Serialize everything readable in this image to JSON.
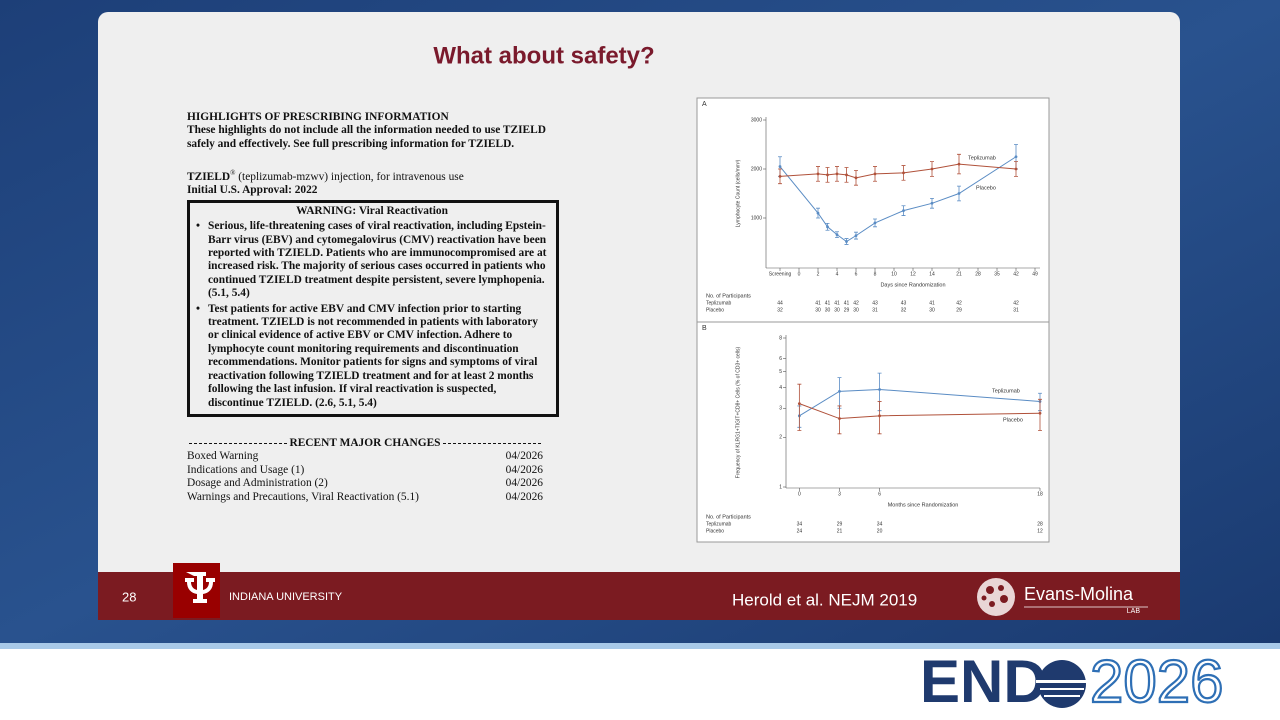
{
  "slide": {
    "title": "What about safety?",
    "number": "28",
    "university": "INDIANA UNIVERSITY",
    "citation": "Herold et al. NEJM 2019",
    "lab_name": "Evans-Molina",
    "lab_sub": "LAB"
  },
  "conference": {
    "brand": "END",
    "year": "2026"
  },
  "label": {
    "heading": "HIGHLIGHTS OF PRESCRIBING INFORMATION",
    "intro": "These highlights do not include all the information needed to use TZIELD safely and effectively.  See full prescribing information for TZIELD.",
    "drug_name": "TZIELD",
    "drug_mark": "®",
    "drug_rest": " (teplizumab-mzwv) injection, for intravenous use",
    "approval": "Initial U.S. Approval: 2022",
    "warning": {
      "title": "WARNING: Viral Reactivation",
      "bullets": [
        "Serious, life-threatening cases of viral reactivation, including Epstein-Barr virus (EBV) and cytomegalovirus (CMV) reactivation have been reported with TZIELD.  Patients who are immunocompromised are at increased risk. The majority of serious cases occurred in patients who continued TZIELD treatment despite persistent, severe lymphopenia. (5.1, 5.4)",
        "Test patients for active EBV and CMV infection prior to starting treatment. TZIELD is not recommended in patients with laboratory or clinical evidence of active EBV or CMV infection. Adhere to lymphocyte count monitoring requirements and discontinuation recommendations. Monitor patients for signs and symptoms of viral reactivation following TZIELD treatment and for at least 2 months following the last infusion.  If viral reactivation is suspected, discontinue TZIELD. (2.6, 5.1, 5.4)"
      ]
    },
    "changes": {
      "title": "RECENT MAJOR CHANGES",
      "rows": [
        [
          "Boxed Warning",
          "04/2026"
        ],
        [
          "Indications and Usage (1)",
          "04/2026"
        ],
        [
          "Dosage and Administration (2)",
          "04/2026"
        ],
        [
          "Warnings and Precautions, Viral Reactivation (5.1)",
          "04/2026"
        ]
      ]
    }
  },
  "charts": [
    {
      "type": "line",
      "panel": "A",
      "y_label": "Lymphocyte Count (cells/mm³)",
      "x_label": "Days since Randomization",
      "ylim": [
        0,
        3000
      ],
      "yticks": [
        1000,
        2000,
        3000
      ],
      "xticks": [
        {
          "value": -2,
          "label": "Screening"
        },
        0,
        2,
        4,
        6,
        8,
        10,
        12,
        14,
        21,
        28,
        35,
        42,
        49
      ],
      "x": [
        -2,
        2,
        3,
        4,
        5,
        6,
        8,
        11,
        14,
        21,
        42
      ],
      "participants_title": "No. of Participants",
      "series": [
        {
          "name": "Teplizumab",
          "color": "#5a8cc4",
          "values": [
            2050,
            1100,
            820,
            660,
            520,
            640,
            900,
            1150,
            1300,
            1500,
            2250
          ],
          "errors": [
            200,
            100,
            70,
            60,
            60,
            70,
            80,
            100,
            100,
            150,
            250
          ],
          "participants": [
            44,
            41,
            41,
            41,
            41,
            42,
            43,
            43,
            41,
            42,
            42
          ]
        },
        {
          "name": "Placebo",
          "color": "#b0513a",
          "values": [
            1850,
            1900,
            1880,
            1900,
            1880,
            1820,
            1900,
            1920,
            2000,
            2100,
            2000
          ],
          "errors": [
            150,
            150,
            150,
            150,
            150,
            150,
            150,
            150,
            150,
            200,
            150
          ],
          "participants": [
            32,
            30,
            30,
            30,
            29,
            30,
            31,
            32,
            30,
            29,
            31
          ]
        }
      ]
    },
    {
      "type": "line",
      "panel": "B",
      "y_label": "Frequency of KLRG1+TIGIT+CD8+ Cells (% of CD3+ cells)",
      "x_label": "Months since Randomization",
      "log_y": true,
      "ylim": [
        1,
        8
      ],
      "yticks": [
        1,
        2,
        3,
        4,
        5,
        6,
        8
      ],
      "xlim": [
        -1,
        18
      ],
      "xticks": [
        0,
        3,
        6,
        18
      ],
      "x": [
        0,
        3,
        6,
        18
      ],
      "participants_title": "No. of Participants",
      "series": [
        {
          "name": "Teplizumab",
          "color": "#5a8cc4",
          "values": [
            2.7,
            3.8,
            3.9,
            3.3
          ],
          "errors": [
            0.4,
            0.8,
            1.0,
            0.4
          ],
          "participants": [
            34,
            29,
            34,
            28
          ]
        },
        {
          "name": "Placebo",
          "color": "#b0513a",
          "values": [
            3.2,
            2.6,
            2.7,
            2.8
          ],
          "errors": [
            1.0,
            0.5,
            0.6,
            0.6
          ],
          "participants": [
            24,
            21,
            20,
            12
          ]
        }
      ]
    }
  ]
}
